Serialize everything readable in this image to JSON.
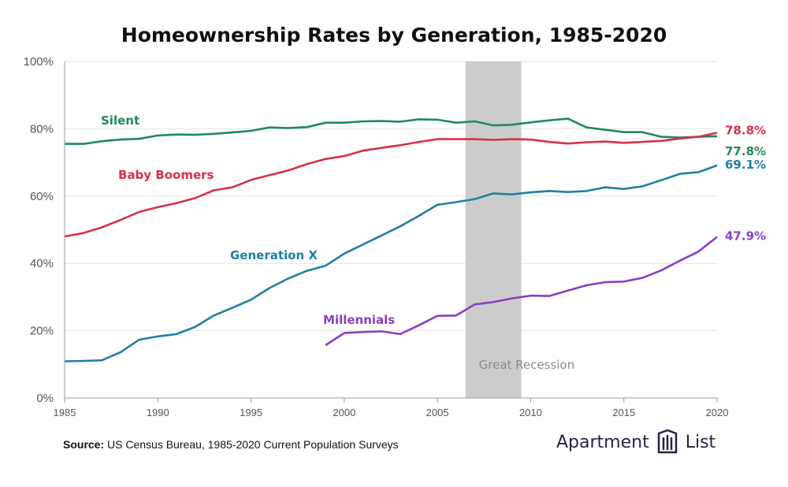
{
  "chart_data": {
    "type": "line",
    "title": "Homeownership Rates by Generation, 1985-2020",
    "x_ticks": [
      "1985",
      "1990",
      "1995",
      "2000",
      "2005",
      "2010",
      "2015",
      "2020"
    ],
    "y_ticks": [
      "0%",
      "20%",
      "40%",
      "60%",
      "80%",
      "100%"
    ],
    "xlim": [
      1985,
      2020
    ],
    "ylim": [
      0,
      100
    ],
    "grid": "horizontal",
    "shaded_region": {
      "label": "Great Recession",
      "x_range": [
        2006.5,
        2009.5
      ],
      "color": "#cccccc"
    },
    "series": [
      {
        "name": "Silent",
        "color": "#1f8a5b",
        "end_label": "77.8%",
        "points": [
          [
            1985,
            75.5
          ],
          [
            1986,
            75.5
          ],
          [
            1987,
            76.3
          ],
          [
            1988,
            76.8
          ],
          [
            1989,
            77.0
          ],
          [
            1990,
            78.0
          ],
          [
            1991,
            78.3
          ],
          [
            1992,
            78.2
          ],
          [
            1993,
            78.5
          ],
          [
            1994,
            78.9
          ],
          [
            1995,
            79.4
          ],
          [
            1996,
            80.4
          ],
          [
            1997,
            80.2
          ],
          [
            1998,
            80.5
          ],
          [
            1999,
            81.8
          ],
          [
            2000,
            81.8
          ],
          [
            2001,
            82.2
          ],
          [
            2002,
            82.3
          ],
          [
            2003,
            82.1
          ],
          [
            2004,
            82.8
          ],
          [
            2005,
            82.7
          ],
          [
            2006,
            81.8
          ],
          [
            2007,
            82.2
          ],
          [
            2008,
            81.0
          ],
          [
            2009,
            81.2
          ],
          [
            2010,
            81.9
          ],
          [
            2011,
            82.5
          ],
          [
            2012,
            83.0
          ],
          [
            2013,
            80.4
          ],
          [
            2014,
            79.7
          ],
          [
            2015,
            79.0
          ],
          [
            2016,
            79.0
          ],
          [
            2017,
            77.6
          ],
          [
            2018,
            77.4
          ],
          [
            2019,
            77.6
          ],
          [
            2020,
            77.8
          ]
        ]
      },
      {
        "name": "Baby Boomers",
        "color": "#d6304a",
        "end_label": "78.8%",
        "points": [
          [
            1985,
            48.0
          ],
          [
            1986,
            49.0
          ],
          [
            1987,
            50.7
          ],
          [
            1988,
            52.9
          ],
          [
            1989,
            55.3
          ],
          [
            1990,
            56.7
          ],
          [
            1991,
            57.9
          ],
          [
            1992,
            59.4
          ],
          [
            1993,
            61.7
          ],
          [
            1994,
            62.6
          ],
          [
            1995,
            64.8
          ],
          [
            1996,
            66.2
          ],
          [
            1997,
            67.6
          ],
          [
            1998,
            69.5
          ],
          [
            1999,
            71.0
          ],
          [
            2000,
            71.9
          ],
          [
            2001,
            73.5
          ],
          [
            2002,
            74.3
          ],
          [
            2003,
            75.1
          ],
          [
            2004,
            76.1
          ],
          [
            2005,
            76.9
          ],
          [
            2006,
            76.9
          ],
          [
            2007,
            76.9
          ],
          [
            2008,
            76.7
          ],
          [
            2009,
            76.9
          ],
          [
            2010,
            76.8
          ],
          [
            2011,
            76.1
          ],
          [
            2012,
            75.6
          ],
          [
            2013,
            76.0
          ],
          [
            2014,
            76.2
          ],
          [
            2015,
            75.8
          ],
          [
            2016,
            76.1
          ],
          [
            2017,
            76.4
          ],
          [
            2018,
            77.1
          ],
          [
            2019,
            77.6
          ],
          [
            2020,
            78.8
          ]
        ]
      },
      {
        "name": "Generation X",
        "color": "#1f7fa6",
        "end_label": "69.1%",
        "points": [
          [
            1985,
            10.9
          ],
          [
            1986,
            11.0
          ],
          [
            1987,
            11.2
          ],
          [
            1988,
            13.6
          ],
          [
            1989,
            17.3
          ],
          [
            1990,
            18.3
          ],
          [
            1991,
            19.0
          ],
          [
            1992,
            21.1
          ],
          [
            1993,
            24.5
          ],
          [
            1994,
            26.8
          ],
          [
            1995,
            29.2
          ],
          [
            1996,
            32.7
          ],
          [
            1997,
            35.5
          ],
          [
            1998,
            37.8
          ],
          [
            1999,
            39.3
          ],
          [
            2000,
            42.9
          ],
          [
            2001,
            45.6
          ],
          [
            2002,
            48.3
          ],
          [
            2003,
            51.0
          ],
          [
            2004,
            54.1
          ],
          [
            2005,
            57.4
          ],
          [
            2006,
            58.2
          ],
          [
            2007,
            59.1
          ],
          [
            2008,
            60.8
          ],
          [
            2009,
            60.5
          ],
          [
            2010,
            61.1
          ],
          [
            2011,
            61.5
          ],
          [
            2012,
            61.2
          ],
          [
            2013,
            61.5
          ],
          [
            2014,
            62.6
          ],
          [
            2015,
            62.1
          ],
          [
            2016,
            62.9
          ],
          [
            2017,
            64.7
          ],
          [
            2018,
            66.6
          ],
          [
            2019,
            67.1
          ],
          [
            2020,
            69.1
          ]
        ]
      },
      {
        "name": "Millennials",
        "color": "#8a3fc7",
        "end_label": "47.9%",
        "points": [
          [
            1999,
            15.7
          ],
          [
            2000,
            19.3
          ],
          [
            2001,
            19.6
          ],
          [
            2002,
            19.8
          ],
          [
            2003,
            19.0
          ],
          [
            2004,
            21.6
          ],
          [
            2005,
            24.4
          ],
          [
            2006,
            24.5
          ],
          [
            2007,
            27.8
          ],
          [
            2008,
            28.5
          ],
          [
            2009,
            29.6
          ],
          [
            2010,
            30.4
          ],
          [
            2011,
            30.3
          ],
          [
            2012,
            31.9
          ],
          [
            2013,
            33.5
          ],
          [
            2014,
            34.4
          ],
          [
            2015,
            34.6
          ],
          [
            2016,
            35.7
          ],
          [
            2017,
            37.9
          ],
          [
            2018,
            40.8
          ],
          [
            2019,
            43.5
          ],
          [
            2020,
            47.9
          ]
        ]
      }
    ]
  },
  "source": {
    "prefix": "Source:",
    "text": " US Census Bureau, 1985-2020 Current Population Surveys"
  },
  "brand": {
    "left": "Apartment",
    "right": "List",
    "logo_icon": "apartment-list-logo-icon"
  }
}
